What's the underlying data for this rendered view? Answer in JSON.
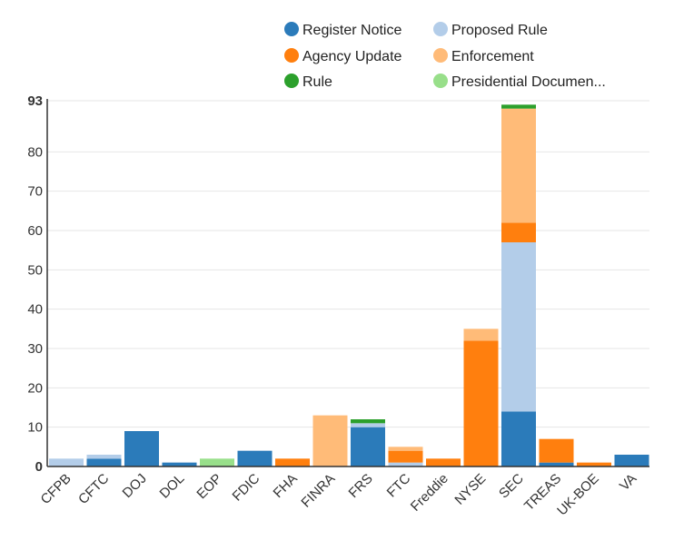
{
  "chart_data": {
    "type": "bar",
    "stacked": true,
    "ylim": [
      0,
      93
    ],
    "yticks": [
      "0",
      "10",
      "20",
      "30",
      "40",
      "50",
      "60",
      "70",
      "80",
      "93"
    ],
    "grid": true,
    "legend_position": "top-center",
    "categories": [
      "CFPB",
      "CFTC",
      "DOJ",
      "DOL",
      "EOP",
      "FDIC",
      "FHA",
      "FINRA",
      "FRS",
      "FTC",
      "Freddie",
      "NYSE",
      "SEC",
      "TREAS",
      "UK-BOE",
      "VA"
    ],
    "series": [
      {
        "name": "Register Notice",
        "color": "#2b7bba",
        "values": [
          0,
          2,
          9,
          1,
          0,
          4,
          0,
          0,
          10,
          0,
          0,
          0,
          14,
          1,
          0,
          3
        ]
      },
      {
        "name": "Proposed Rule",
        "color": "#b3cde9",
        "values": [
          2,
          1,
          0,
          0,
          0,
          0,
          0,
          0,
          1,
          1,
          0,
          0,
          43,
          0,
          0,
          0
        ]
      },
      {
        "name": "Agency Update",
        "color": "#ff7f0e",
        "values": [
          0,
          0,
          0,
          0,
          0,
          0,
          2,
          0,
          0,
          3,
          2,
          32,
          5,
          6,
          1,
          0
        ]
      },
      {
        "name": "Enforcement",
        "color": "#ffbb78",
        "values": [
          0,
          0,
          0,
          0,
          0,
          0,
          0,
          13,
          0,
          1,
          0,
          3,
          29,
          0,
          0,
          0
        ]
      },
      {
        "name": "Rule",
        "color": "#2ca02c",
        "values": [
          0,
          0,
          0,
          0,
          0,
          0,
          0,
          0,
          1,
          0,
          0,
          0,
          1,
          0,
          0,
          0
        ]
      },
      {
        "name": "Presidential Documen...",
        "color": "#98df8a",
        "values": [
          0,
          0,
          0,
          0,
          2,
          0,
          0,
          0,
          0,
          0,
          0,
          0,
          0,
          0,
          0,
          0
        ]
      }
    ]
  }
}
